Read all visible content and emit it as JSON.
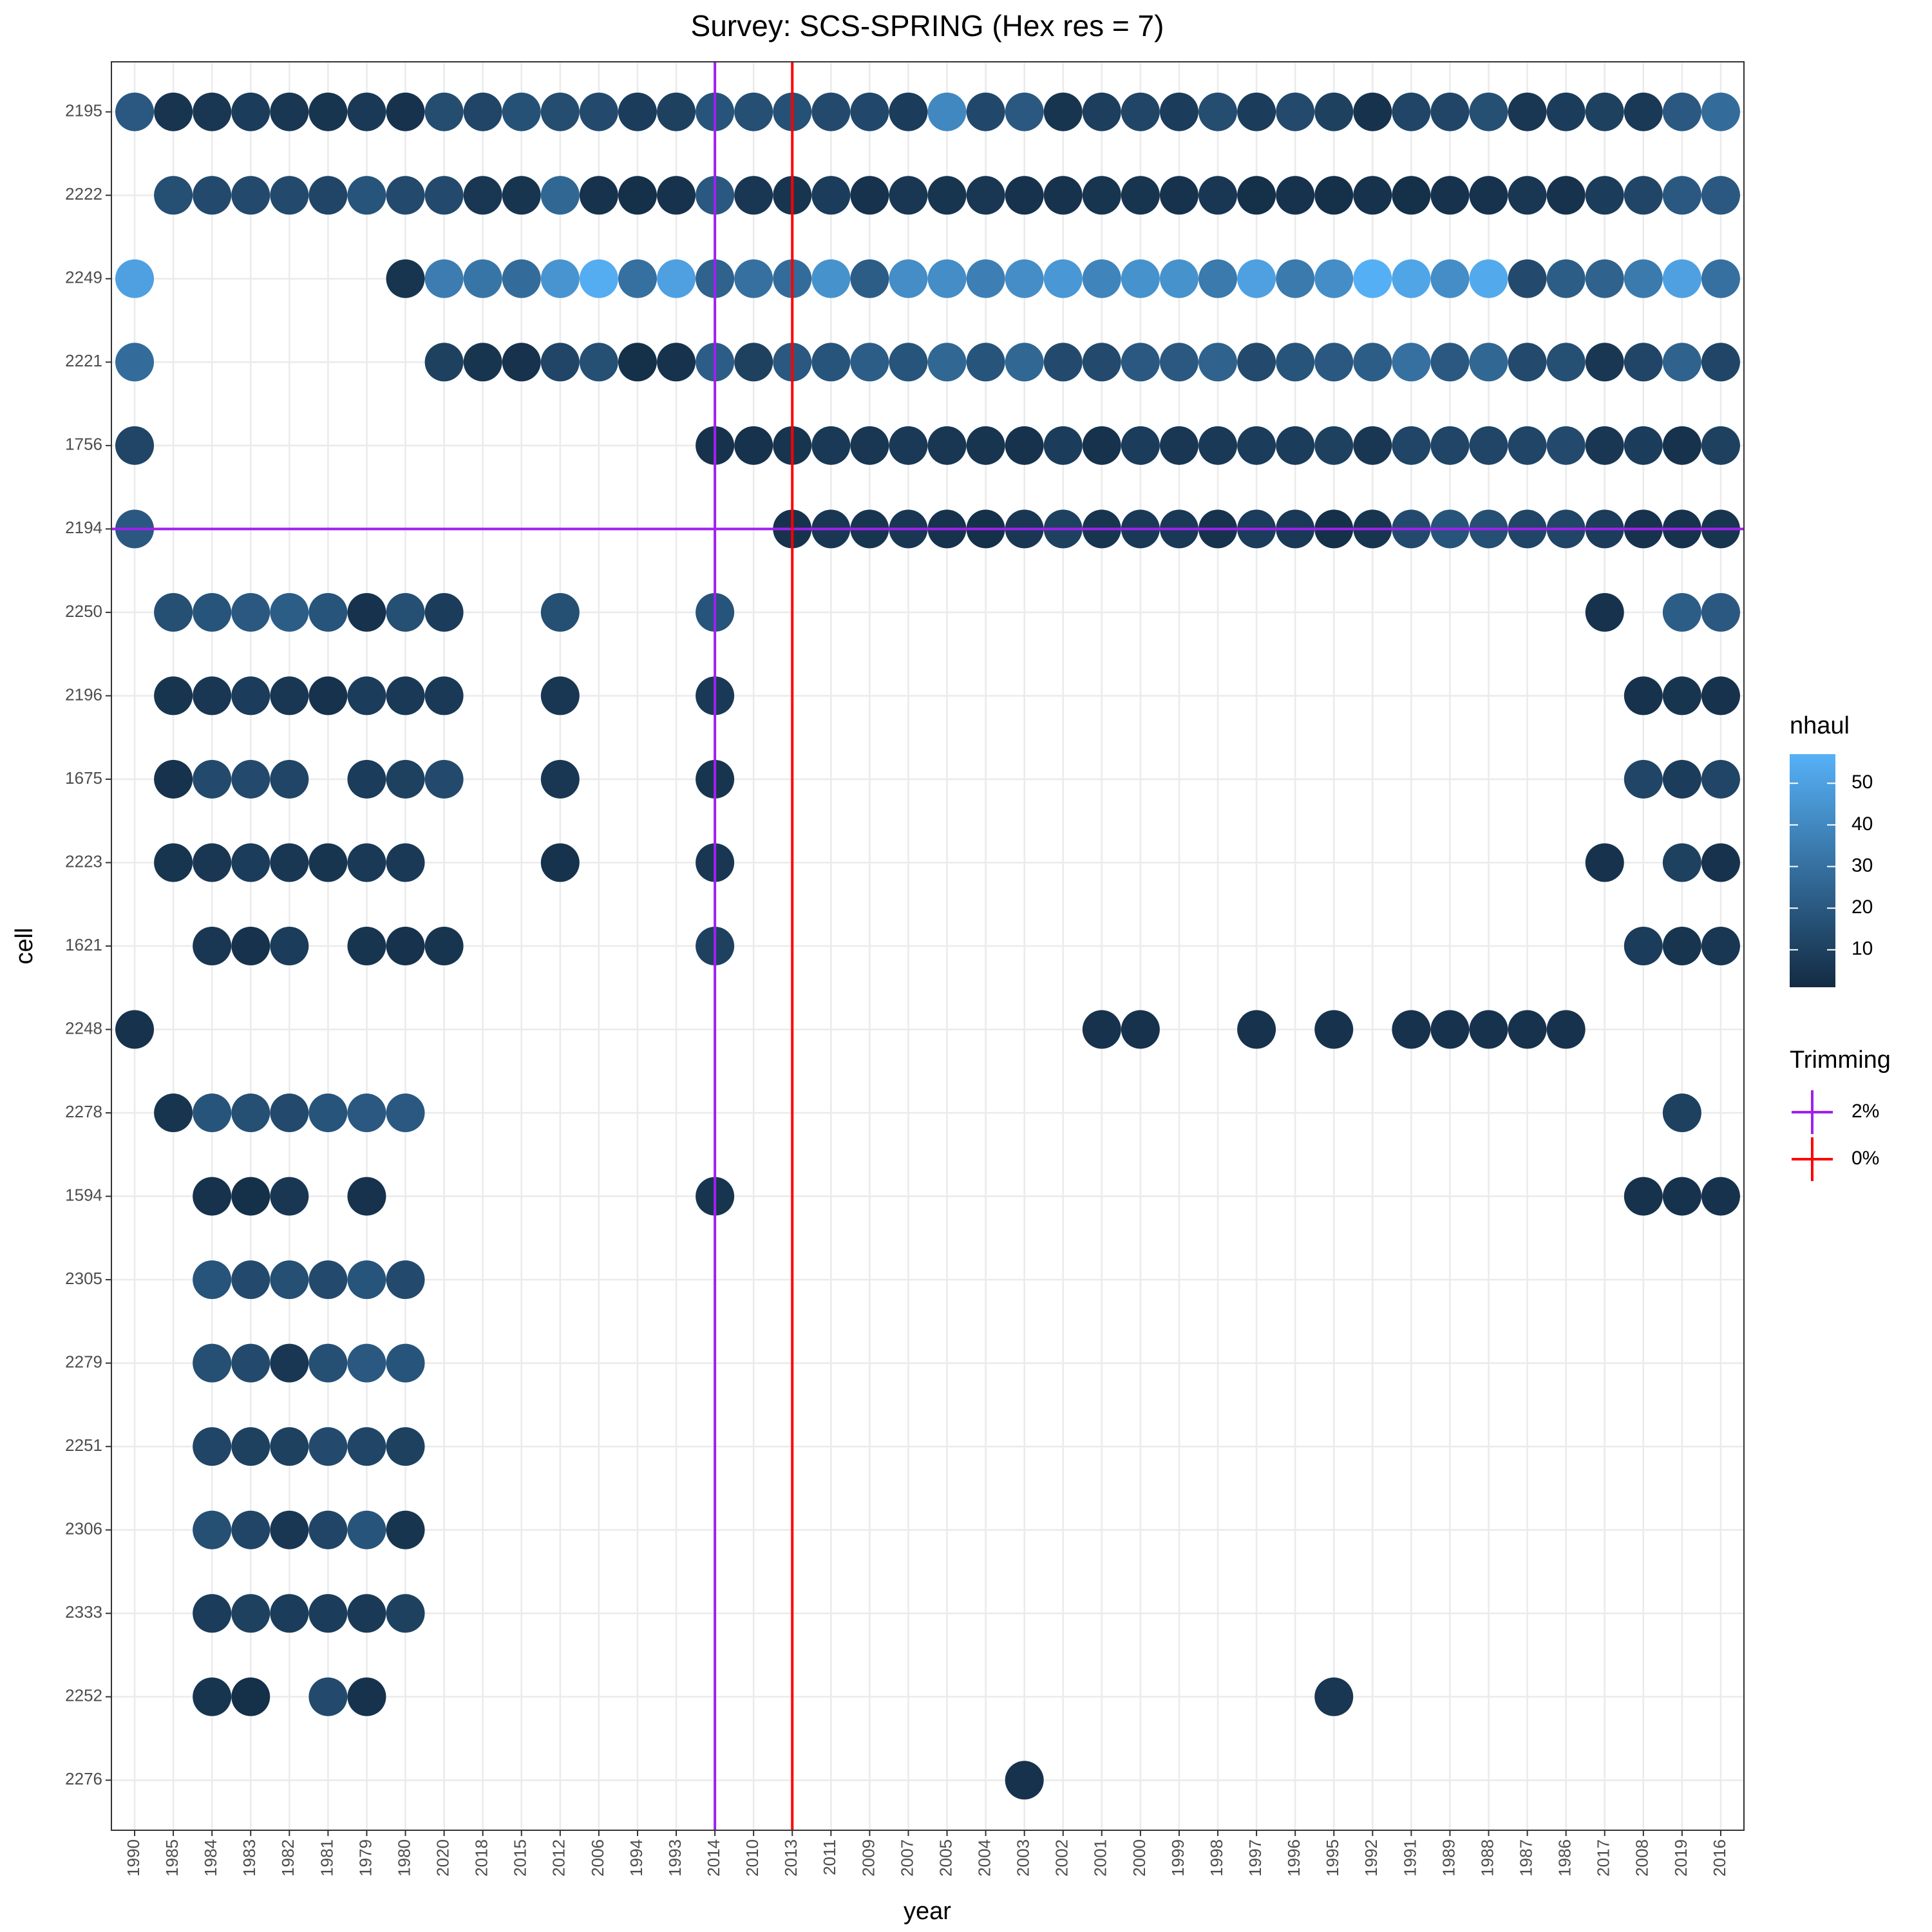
{
  "chart_data": {
    "type": "dot",
    "title": "Survey: SCS-SPRING (Hex res = 7)",
    "x_label": "year",
    "y_label": "cell",
    "categories": [
      "1990",
      "1985",
      "1984",
      "1983",
      "1982",
      "1981",
      "1979",
      "1980",
      "2020",
      "2018",
      "2015",
      "2012",
      "2006",
      "1994",
      "1993",
      "2014",
      "2010",
      "2013",
      "2011",
      "2009",
      "2007",
      "2005",
      "2004",
      "2003",
      "2002",
      "2001",
      "2000",
      "1999",
      "1998",
      "1997",
      "1996",
      "1995",
      "1992",
      "1991",
      "1989",
      "1988",
      "1987",
      "1986",
      "2017",
      "2008",
      "2019",
      "2016"
    ],
    "rows": [
      {
        "cell": "2195",
        "values": [
          20,
          5,
          6,
          8,
          6,
          5,
          7,
          4,
          15,
          12,
          17,
          15,
          14,
          8,
          10,
          18,
          16,
          17,
          14,
          13,
          8,
          40,
          13,
          20,
          5,
          9,
          12,
          8,
          15,
          8,
          14,
          10,
          4,
          12,
          12,
          16,
          6,
          8,
          10,
          7,
          20,
          28
        ]
      },
      {
        "cell": "2222",
        "values": [
          null,
          16,
          14,
          14,
          14,
          12,
          18,
          14,
          14,
          6,
          5,
          26,
          4,
          3,
          4,
          20,
          6,
          5,
          8,
          4,
          6,
          5,
          6,
          4,
          4,
          5,
          5,
          4,
          6,
          3,
          4,
          3,
          4,
          3,
          4,
          4,
          6,
          4,
          8,
          12,
          20,
          20
        ]
      },
      {
        "cell": "2249",
        "values": [
          50,
          null,
          null,
          null,
          null,
          null,
          null,
          5,
          35,
          32,
          28,
          45,
          55,
          30,
          50,
          24,
          30,
          28,
          44,
          22,
          42,
          42,
          36,
          42,
          46,
          38,
          44,
          44,
          34,
          50,
          34,
          42,
          56,
          52,
          42,
          54,
          14,
          22,
          24,
          34,
          50,
          30
        ]
      },
      {
        "cell": "2221",
        "values": [
          28,
          null,
          null,
          null,
          null,
          null,
          null,
          null,
          10,
          5,
          4,
          12,
          16,
          3,
          4,
          22,
          10,
          20,
          18,
          22,
          18,
          26,
          18,
          26,
          14,
          14,
          20,
          20,
          24,
          14,
          18,
          20,
          22,
          30,
          20,
          26,
          14,
          16,
          6,
          12,
          24,
          12
        ]
      },
      {
        "cell": "1756",
        "values": [
          12,
          null,
          null,
          null,
          null,
          null,
          null,
          null,
          null,
          null,
          null,
          null,
          null,
          null,
          null,
          4,
          4,
          5,
          7,
          6,
          7,
          6,
          5,
          4,
          8,
          4,
          8,
          6,
          7,
          8,
          8,
          10,
          6,
          12,
          12,
          12,
          12,
          14,
          6,
          8,
          4,
          10
        ]
      },
      {
        "cell": "2194",
        "values": [
          20,
          null,
          null,
          null,
          null,
          null,
          null,
          null,
          null,
          null,
          null,
          null,
          null,
          null,
          null,
          null,
          null,
          4,
          6,
          5,
          6,
          4,
          3,
          6,
          10,
          5,
          7,
          7,
          4,
          8,
          7,
          3,
          5,
          14,
          18,
          16,
          12,
          12,
          8,
          4,
          4,
          5
        ]
      },
      {
        "cell": "2250",
        "values": [
          null,
          16,
          18,
          20,
          22,
          18,
          4,
          16,
          8,
          null,
          null,
          16,
          null,
          null,
          null,
          18,
          null,
          null,
          null,
          null,
          null,
          null,
          null,
          null,
          null,
          null,
          null,
          null,
          null,
          null,
          null,
          null,
          null,
          null,
          null,
          null,
          null,
          null,
          4,
          null,
          22,
          20
        ]
      },
      {
        "cell": "2196",
        "values": [
          null,
          5,
          6,
          8,
          6,
          4,
          8,
          7,
          7,
          null,
          null,
          6,
          null,
          null,
          null,
          7,
          null,
          null,
          null,
          null,
          null,
          null,
          null,
          null,
          null,
          null,
          null,
          null,
          null,
          null,
          null,
          null,
          null,
          null,
          null,
          null,
          null,
          null,
          null,
          4,
          5,
          4
        ]
      },
      {
        "cell": "1675",
        "values": [
          null,
          4,
          14,
          14,
          12,
          null,
          8,
          10,
          14,
          null,
          null,
          6,
          null,
          null,
          null,
          5,
          null,
          null,
          null,
          null,
          null,
          null,
          null,
          null,
          null,
          null,
          null,
          null,
          null,
          null,
          null,
          null,
          null,
          null,
          null,
          null,
          null,
          null,
          null,
          12,
          8,
          12
        ]
      },
      {
        "cell": "2223",
        "values": [
          null,
          5,
          6,
          8,
          6,
          5,
          7,
          7,
          null,
          null,
          null,
          4,
          null,
          null,
          null,
          6,
          null,
          null,
          null,
          null,
          null,
          null,
          null,
          null,
          null,
          null,
          null,
          null,
          null,
          null,
          null,
          null,
          null,
          null,
          null,
          null,
          null,
          null,
          4,
          null,
          10,
          4
        ]
      },
      {
        "cell": "1621",
        "values": [
          null,
          null,
          6,
          4,
          8,
          null,
          5,
          4,
          5,
          null,
          null,
          null,
          null,
          null,
          null,
          10,
          null,
          null,
          null,
          null,
          null,
          null,
          null,
          null,
          null,
          null,
          null,
          null,
          null,
          null,
          null,
          null,
          null,
          null,
          null,
          null,
          null,
          null,
          null,
          8,
          5,
          6
        ]
      },
      {
        "cell": "2248",
        "values": [
          4,
          null,
          null,
          null,
          null,
          null,
          null,
          null,
          null,
          null,
          null,
          null,
          null,
          null,
          null,
          null,
          null,
          null,
          null,
          null,
          null,
          null,
          null,
          null,
          null,
          4,
          4,
          null,
          null,
          4,
          null,
          4,
          null,
          4,
          4,
          4,
          4,
          4,
          null,
          null,
          null,
          null
        ]
      },
      {
        "cell": "2278",
        "values": [
          null,
          5,
          18,
          16,
          14,
          18,
          20,
          20,
          null,
          null,
          null,
          null,
          null,
          null,
          null,
          null,
          null,
          null,
          null,
          null,
          null,
          null,
          null,
          null,
          null,
          null,
          null,
          null,
          null,
          null,
          null,
          null,
          null,
          null,
          null,
          null,
          null,
          null,
          null,
          null,
          10,
          null
        ]
      },
      {
        "cell": "1594",
        "values": [
          null,
          null,
          4,
          3,
          6,
          null,
          4,
          null,
          null,
          null,
          null,
          null,
          null,
          null,
          null,
          5,
          null,
          null,
          null,
          null,
          null,
          null,
          null,
          null,
          null,
          null,
          null,
          null,
          null,
          null,
          null,
          null,
          null,
          null,
          null,
          null,
          null,
          null,
          null,
          4,
          4,
          4
        ]
      },
      {
        "cell": "2305",
        "values": [
          null,
          null,
          18,
          14,
          16,
          14,
          18,
          14,
          null,
          null,
          null,
          null,
          null,
          null,
          null,
          null,
          null,
          null,
          null,
          null,
          null,
          null,
          null,
          null,
          null,
          null,
          null,
          null,
          null,
          null,
          null,
          null,
          null,
          null,
          null,
          null,
          null,
          null,
          null,
          null,
          null,
          null
        ]
      },
      {
        "cell": "2279",
        "values": [
          null,
          null,
          16,
          14,
          6,
          16,
          20,
          18,
          null,
          null,
          null,
          null,
          null,
          null,
          null,
          null,
          null,
          null,
          null,
          null,
          null,
          null,
          null,
          null,
          null,
          null,
          null,
          null,
          null,
          null,
          null,
          null,
          null,
          null,
          null,
          null,
          null,
          null,
          null,
          null,
          null,
          null
        ]
      },
      {
        "cell": "2251",
        "values": [
          null,
          null,
          12,
          10,
          10,
          14,
          12,
          10,
          null,
          null,
          null,
          null,
          null,
          null,
          null,
          null,
          null,
          null,
          null,
          null,
          null,
          null,
          null,
          null,
          null,
          null,
          null,
          null,
          null,
          null,
          null,
          null,
          null,
          null,
          null,
          null,
          null,
          null,
          null,
          null,
          null,
          null
        ]
      },
      {
        "cell": "2306",
        "values": [
          null,
          null,
          16,
          12,
          6,
          12,
          18,
          5,
          null,
          null,
          null,
          null,
          null,
          null,
          null,
          null,
          null,
          null,
          null,
          null,
          null,
          null,
          null,
          null,
          null,
          null,
          null,
          null,
          null,
          null,
          null,
          null,
          null,
          null,
          null,
          null,
          null,
          null,
          null,
          null,
          null,
          null
        ]
      },
      {
        "cell": "2333",
        "values": [
          null,
          null,
          8,
          10,
          8,
          8,
          7,
          10,
          null,
          null,
          null,
          null,
          null,
          null,
          null,
          null,
          null,
          null,
          null,
          null,
          null,
          null,
          null,
          null,
          null,
          null,
          null,
          null,
          null,
          null,
          null,
          null,
          null,
          null,
          null,
          null,
          null,
          null,
          null,
          null,
          null,
          null
        ]
      },
      {
        "cell": "2252",
        "values": [
          null,
          null,
          5,
          3,
          null,
          14,
          4,
          null,
          null,
          null,
          null,
          null,
          null,
          null,
          null,
          null,
          null,
          null,
          null,
          null,
          null,
          null,
          null,
          null,
          null,
          null,
          null,
          null,
          null,
          null,
          null,
          6,
          null,
          null,
          null,
          null,
          null,
          null,
          null,
          null,
          null,
          null
        ]
      },
      {
        "cell": "2276",
        "values": [
          null,
          null,
          null,
          null,
          null,
          null,
          null,
          null,
          null,
          null,
          null,
          null,
          null,
          null,
          null,
          null,
          null,
          null,
          null,
          null,
          null,
          null,
          null,
          4,
          null,
          null,
          null,
          null,
          null,
          null,
          null,
          null,
          null,
          null,
          null,
          null,
          null,
          null,
          null,
          null,
          null,
          null
        ]
      }
    ],
    "colorbar": {
      "title": "nhaul",
      "lim": [
        1,
        57
      ],
      "ticks": [
        10,
        20,
        30,
        40,
        50
      ],
      "low": "#132B43",
      "high": "#56B1F7"
    },
    "trimming": {
      "title": "Trimming",
      "lines": [
        {
          "label": "2%",
          "color": "#a020f0",
          "x": "2014",
          "y": "2194"
        },
        {
          "label": "0%",
          "color": "#ff0000",
          "x": "2013"
        }
      ]
    },
    "grid": true
  }
}
